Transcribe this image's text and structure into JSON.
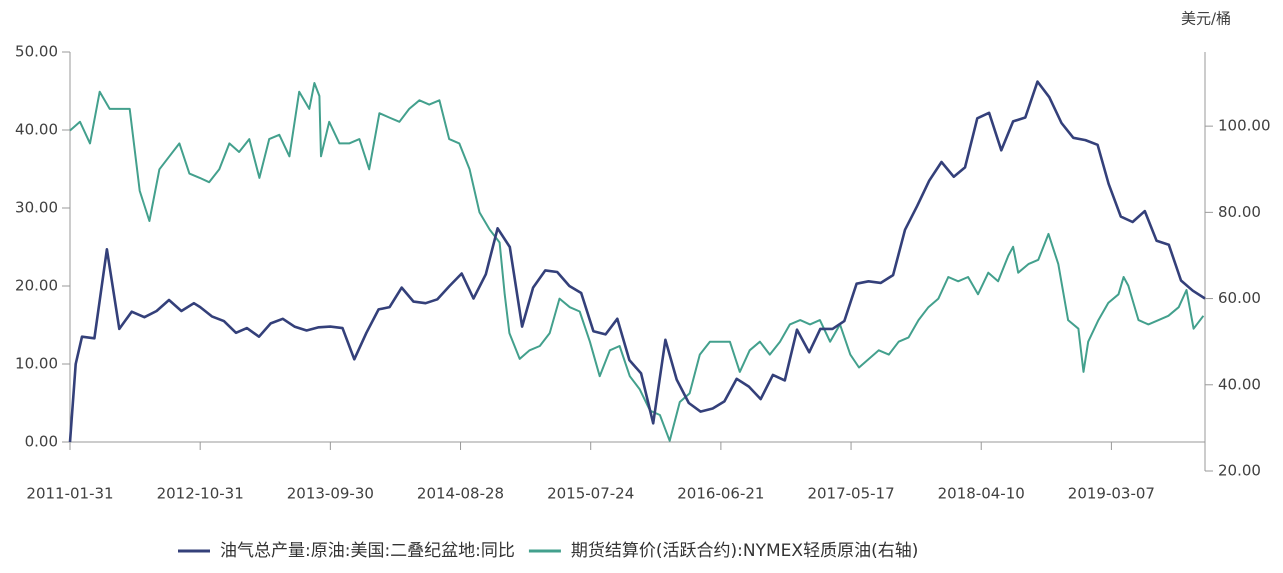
{
  "chart_data": {
    "type": "line",
    "y2label": "美元/桶",
    "xlim": [
      "2011-01-31",
      "2019-10-31"
    ],
    "xticks": [
      "2011-01-31",
      "2012-10-31",
      "2013-09-30",
      "2014-08-28",
      "2015-07-24",
      "2016-06-21",
      "2017-05-17",
      "2018-04-10",
      "2019-03-07"
    ],
    "ylim": [
      0,
      50
    ],
    "yticks": [
      {
        "value": 0,
        "label": "0.00"
      },
      {
        "value": 10,
        "label": "10.00"
      },
      {
        "value": 20,
        "label": "20.00"
      },
      {
        "value": 30,
        "label": "30.00"
      },
      {
        "value": 40,
        "label": "40.00"
      },
      {
        "value": 50,
        "label": "50.00"
      }
    ],
    "y2lim": [
      20,
      117.2
    ],
    "y2ticks": [
      {
        "value": 20,
        "label": "20.00"
      },
      {
        "value": 40,
        "label": "40.00"
      },
      {
        "value": 60,
        "label": "60.00"
      },
      {
        "value": 80,
        "label": "80.00"
      },
      {
        "value": 100,
        "label": "100.00"
      }
    ],
    "legend": "bottom",
    "series": [
      {
        "name": "油气总产量:原油:美国:二叠纪盆地:同比",
        "color": "#34407a",
        "x": [
          "2011-01-31",
          "2011-02-28",
          "2011-03-31",
          "2011-05-31",
          "2011-07-31",
          "2011-09-30",
          "2011-11-30",
          "2012-01-31",
          "2012-03-31",
          "2012-05-31",
          "2012-07-31",
          "2012-09-30",
          "2012-10-31",
          "2012-11-30",
          "2012-12-31",
          "2013-01-31",
          "2013-02-28",
          "2013-03-31",
          "2013-04-30",
          "2013-05-31",
          "2013-06-30",
          "2013-07-31",
          "2013-08-31",
          "2013-09-30",
          "2013-10-31",
          "2013-11-30",
          "2013-12-31",
          "2014-01-31",
          "2014-02-28",
          "2014-03-31",
          "2014-04-30",
          "2014-05-31",
          "2014-06-30",
          "2014-07-31",
          "2014-08-31",
          "2014-09-30",
          "2014-10-31",
          "2014-11-30",
          "2014-12-31",
          "2015-01-31",
          "2015-02-28",
          "2015-03-31",
          "2015-04-30",
          "2015-05-31",
          "2015-06-30",
          "2015-07-31",
          "2015-08-31",
          "2015-09-30",
          "2015-10-31",
          "2015-11-30",
          "2015-12-31",
          "2016-01-31",
          "2016-02-29",
          "2016-03-31",
          "2016-04-30",
          "2016-05-31",
          "2016-06-30",
          "2016-07-31",
          "2016-08-31",
          "2016-09-30",
          "2016-10-31",
          "2016-11-30",
          "2016-12-31",
          "2017-01-31",
          "2017-02-28",
          "2017-03-31",
          "2017-04-30",
          "2017-05-31",
          "2017-06-30",
          "2017-07-31",
          "2017-08-31",
          "2017-09-30",
          "2017-10-31",
          "2017-11-30",
          "2017-12-31",
          "2018-01-31",
          "2018-02-28",
          "2018-03-31",
          "2018-04-30",
          "2018-05-31",
          "2018-06-30",
          "2018-07-31",
          "2018-08-31",
          "2018-09-30",
          "2018-10-31",
          "2018-11-30",
          "2018-12-31",
          "2019-01-31",
          "2019-02-28",
          "2019-03-31",
          "2019-04-30",
          "2019-05-31",
          "2019-06-30",
          "2019-07-31",
          "2019-08-31",
          "2019-09-30",
          "2019-10-31"
        ],
        "values": [
          0,
          10.0,
          13.5,
          13.3,
          24.7,
          14.5,
          16.7,
          16.0,
          16.8,
          18.2,
          16.8,
          17.8,
          17.3,
          16.1,
          15.5,
          14.0,
          14.6,
          13.5,
          15.2,
          15.8,
          14.8,
          14.3,
          14.7,
          14.8,
          14.6,
          10.6,
          14.0,
          17.0,
          17.3,
          19.8,
          18.0,
          17.8,
          18.3,
          20.0,
          21.6,
          18.4,
          21.5,
          27.4,
          25.0,
          14.8,
          19.8,
          22.0,
          21.8,
          20.0,
          19.1,
          14.2,
          13.8,
          15.8,
          10.5,
          8.8,
          2.4,
          13.1,
          8.0,
          5.0,
          3.9,
          4.3,
          5.2,
          8.1,
          7.1,
          5.5,
          8.6,
          7.9,
          14.4,
          11.5,
          14.5,
          14.5,
          15.5,
          20.3,
          20.6,
          20.4,
          21.4,
          27.2,
          30.3,
          33.5,
          35.9,
          34.0,
          35.2,
          41.5,
          42.2,
          37.4,
          41.1,
          41.6,
          46.2,
          44.2,
          40.9,
          39.0,
          38.7,
          38.1,
          33.1,
          28.9,
          28.2,
          29.6,
          25.8,
          25.3,
          20.7,
          19.4,
          18.4
        ]
      },
      {
        "name": "期货结算价(活跃合约):NYMEX轻质原油(右轴)",
        "color": "#43a08d",
        "axis": "y2",
        "x": [
          "2011-01-31",
          "2011-03-21",
          "2011-05-09",
          "2011-06-26",
          "2011-08-14",
          "2011-10-01",
          "2011-11-20",
          "2012-01-08",
          "2012-02-25",
          "2012-04-14",
          "2012-06-02",
          "2012-07-21",
          "2012-09-08",
          "2012-10-29",
          "2012-11-23",
          "2012-12-19",
          "2013-01-14",
          "2013-02-08",
          "2013-03-06",
          "2013-04-01",
          "2013-04-26",
          "2013-05-22",
          "2013-06-17",
          "2013-07-12",
          "2013-08-07",
          "2013-08-20",
          "2013-09-02",
          "2013-09-06",
          "2013-09-27",
          "2013-10-23",
          "2013-11-17",
          "2013-12-13",
          "2014-01-07",
          "2014-02-02",
          "2014-02-27",
          "2014-03-25",
          "2014-04-19",
          "2014-05-15",
          "2014-06-09",
          "2014-07-05",
          "2014-07-30",
          "2014-08-25",
          "2014-09-20",
          "2014-10-15",
          "2014-11-10",
          "2014-12-05",
          "2014-12-18",
          "2014-12-30",
          "2015-01-25",
          "2015-02-19",
          "2015-03-17",
          "2015-04-11",
          "2015-05-06",
          "2015-06-01",
          "2015-06-26",
          "2015-07-22",
          "2015-08-16",
          "2015-09-11",
          "2015-10-06",
          "2015-11-01",
          "2015-11-26",
          "2015-12-23",
          "2016-01-17",
          "2016-02-11",
          "2016-03-08",
          "2016-04-02",
          "2016-04-28",
          "2016-05-24",
          "2016-06-18",
          "2016-07-14",
          "2016-08-08",
          "2016-09-02",
          "2016-09-28",
          "2016-10-23",
          "2016-11-18",
          "2016-12-13",
          "2017-01-08",
          "2017-02-02",
          "2017-02-27",
          "2017-03-25",
          "2017-04-19",
          "2017-05-15",
          "2017-06-06",
          "2017-07-01",
          "2017-07-26",
          "2017-08-20",
          "2017-09-14",
          "2017-10-09",
          "2017-11-03",
          "2017-11-28",
          "2017-12-23",
          "2018-01-17",
          "2018-02-11",
          "2018-03-08",
          "2018-04-02",
          "2018-04-28",
          "2018-05-23",
          "2018-06-18",
          "2018-06-30",
          "2018-07-13",
          "2018-08-08",
          "2018-09-02",
          "2018-09-28",
          "2018-10-23",
          "2018-11-17",
          "2018-12-13",
          "2018-12-26",
          "2019-01-07",
          "2019-02-02",
          "2019-02-27",
          "2019-03-25",
          "2019-04-07",
          "2019-04-19",
          "2019-05-15",
          "2019-06-09",
          "2019-07-05",
          "2019-07-30",
          "2019-08-25",
          "2019-09-14",
          "2019-10-02",
          "2019-10-27"
        ],
        "values": [
          99,
          101,
          96,
          108,
          104,
          104,
          104,
          85,
          78,
          90,
          93,
          96,
          89,
          88,
          87,
          90,
          96,
          94,
          97,
          88,
          97,
          98,
          93,
          108,
          104,
          110,
          107,
          93,
          101,
          96,
          96,
          97,
          90,
          103,
          102,
          101,
          104,
          106,
          105,
          106,
          97,
          96,
          90,
          80,
          76,
          73,
          61,
          52,
          46,
          48,
          49,
          52,
          60,
          58,
          57,
          50,
          42,
          48,
          49,
          42,
          39,
          34,
          33,
          27,
          36,
          38,
          47,
          50,
          50,
          50,
          43,
          48,
          50,
          47,
          50,
          54,
          55,
          54,
          55,
          50,
          54,
          47,
          44,
          46,
          48,
          47,
          50,
          51,
          55,
          58,
          60,
          65,
          64,
          65,
          61,
          66,
          64,
          70,
          72,
          66,
          68,
          69,
          75,
          68,
          55,
          53,
          43,
          50,
          55,
          59,
          61,
          65,
          63,
          55,
          54,
          55,
          56,
          58,
          62,
          53,
          56
        ]
      }
    ]
  }
}
